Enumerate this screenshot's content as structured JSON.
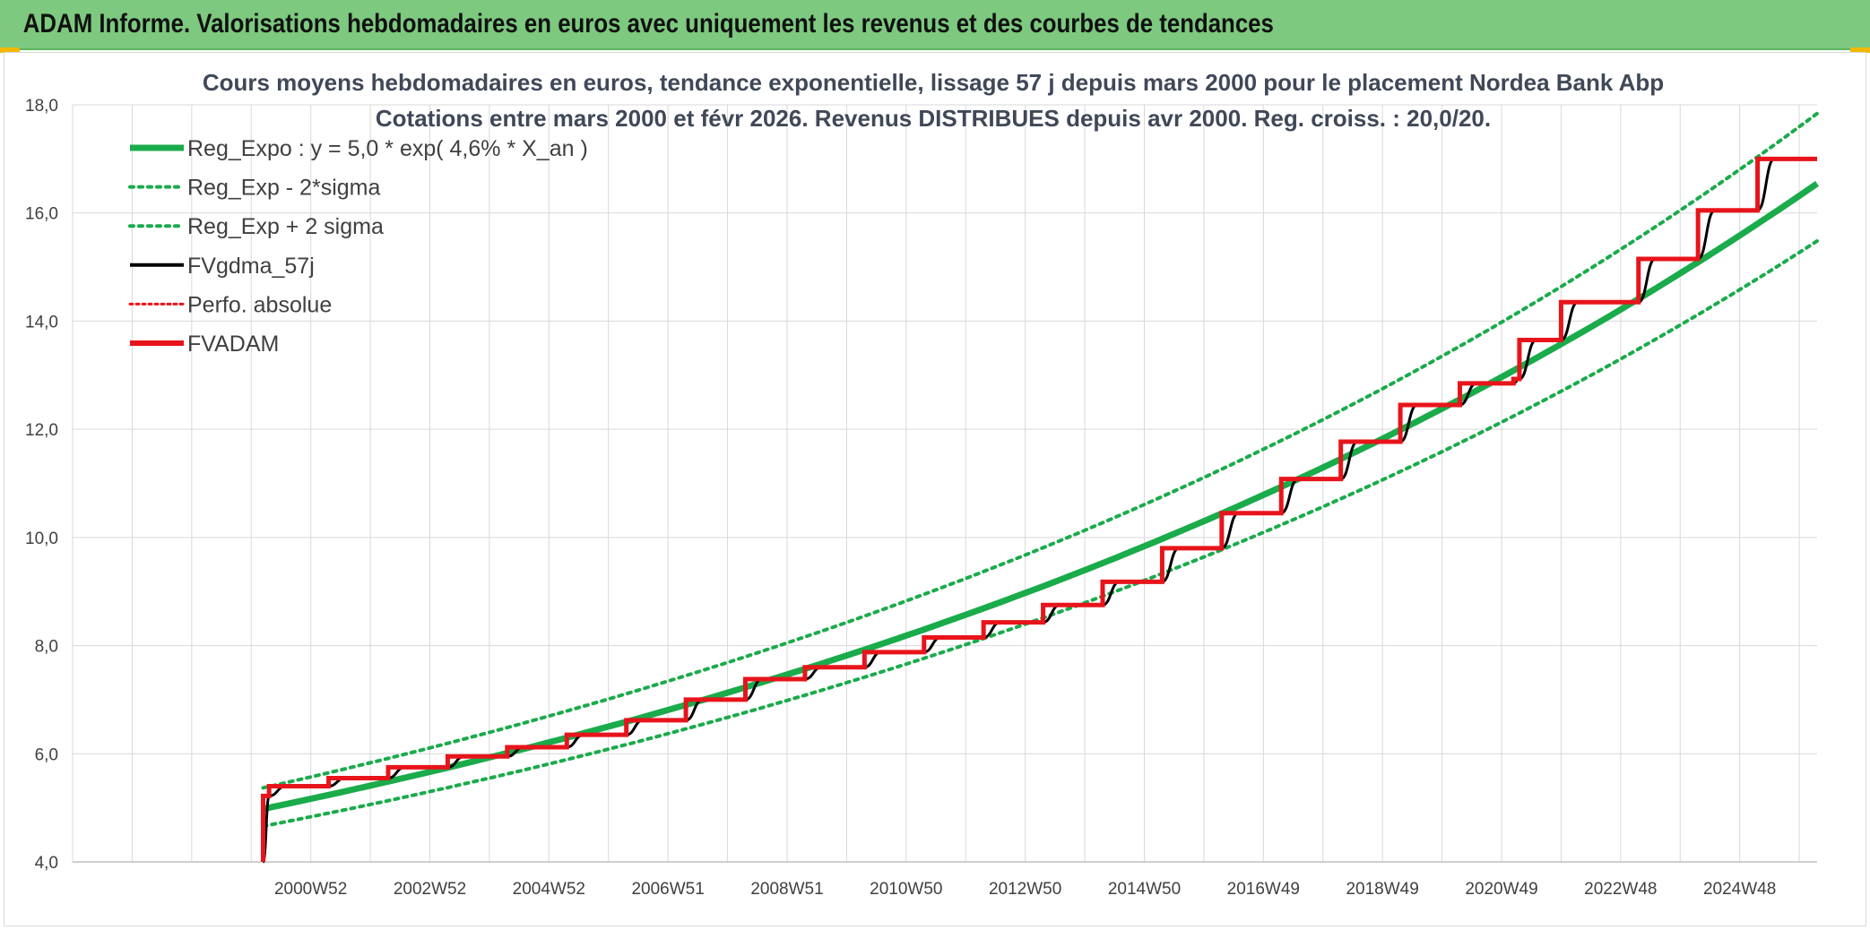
{
  "banner": {
    "text": "ADAM Informe. Valorisations hebdomadaires en euros avec uniquement les revenus et des courbes de tendances"
  },
  "colors": {
    "banner_bg": "#7dc97f",
    "trend_green": "#1aab4b",
    "fv_black": "#000000",
    "adam_red": "#e8141b",
    "grid": "#d9d9d9"
  },
  "chart_data": {
    "type": "line",
    "title": "Cours moyens hebdomadaires en euros, tendance exponentielle, lissage 57 j depuis mars 2000 pour le placement Nordea Bank Abp",
    "subtitle": "Cotations entre mars 2000 et févr 2026. Revenus DISTRIBUES depuis avr 2000. Reg. croiss. : 20,0/20.",
    "xlabel": "",
    "ylabel": "",
    "x_range": [
      1997.0,
      2026.3
    ],
    "ylim": [
      4,
      18
    ],
    "y_ticks": [
      "4,0",
      "6,0",
      "8,0",
      "10,0",
      "12,0",
      "14,0",
      "16,0",
      "18,0"
    ],
    "y_tick_values": [
      4,
      6,
      8,
      10,
      12,
      14,
      16,
      18
    ],
    "x_ticks": [
      "2000W52",
      "2002W52",
      "2004W52",
      "2006W51",
      "2008W51",
      "2010W50",
      "2012W50",
      "2014W50",
      "2016W49",
      "2018W49",
      "2020W49",
      "2022W48",
      "2024W48"
    ],
    "x_tick_values": [
      2001,
      2003,
      2005,
      2007,
      2009,
      2011,
      2013,
      2015,
      2017,
      2019,
      2021,
      2023,
      2025
    ],
    "gridlines": true,
    "legend_position": "top-left",
    "series": [
      {
        "name": "Reg_Expo : y = 5,0 * exp( 4,6% *  X_an )",
        "kind": "exp",
        "base": 4.98,
        "rate": 0.046,
        "x0": 2000.2,
        "x_start": 2000.2,
        "x_end": 2026.3,
        "color": "#1aab4b",
        "style": "solid"
      },
      {
        "name": "Reg_Exp - 2*sigma",
        "kind": "exp",
        "base": 4.66,
        "rate": 0.046,
        "x0": 2000.2,
        "x_start": 2000.2,
        "x_end": 2026.3,
        "color": "#1aab4b",
        "style": "dotted"
      },
      {
        "name": "Reg_Exp + 2 sigma",
        "kind": "exp",
        "base": 5.37,
        "rate": 0.046,
        "x0": 2000.2,
        "x_start": 2000.2,
        "x_end": 2026.3,
        "color": "#1aab4b",
        "style": "dotted"
      },
      {
        "name": "FVgdma_57j",
        "kind": "smooth_steps",
        "color": "#000000",
        "style": "solid"
      },
      {
        "name": "Perfo. absolue",
        "kind": "none",
        "color": "#e8141b",
        "style": "dotted"
      },
      {
        "name": "FVADAM",
        "kind": "steps",
        "color": "#e8141b",
        "style": "solid"
      }
    ],
    "step_start": {
      "x": 2000.2,
      "y": 4.0
    },
    "steps": [
      {
        "x": 2000.2,
        "y": 5.22
      },
      {
        "x": 2000.3,
        "y": 5.4
      },
      {
        "x": 2001.3,
        "y": 5.55
      },
      {
        "x": 2002.3,
        "y": 5.75
      },
      {
        "x": 2003.3,
        "y": 5.95
      },
      {
        "x": 2004.3,
        "y": 6.12
      },
      {
        "x": 2005.3,
        "y": 6.35
      },
      {
        "x": 2006.3,
        "y": 6.62
      },
      {
        "x": 2007.3,
        "y": 7.0
      },
      {
        "x": 2008.3,
        "y": 7.38
      },
      {
        "x": 2009.3,
        "y": 7.6
      },
      {
        "x": 2010.3,
        "y": 7.88
      },
      {
        "x": 2011.3,
        "y": 8.15
      },
      {
        "x": 2012.3,
        "y": 8.43
      },
      {
        "x": 2013.3,
        "y": 8.75
      },
      {
        "x": 2014.3,
        "y": 9.18
      },
      {
        "x": 2015.3,
        "y": 9.8
      },
      {
        "x": 2016.3,
        "y": 10.45
      },
      {
        "x": 2017.3,
        "y": 11.08
      },
      {
        "x": 2018.3,
        "y": 11.77
      },
      {
        "x": 2019.3,
        "y": 12.45
      },
      {
        "x": 2020.3,
        "y": 12.85
      },
      {
        "x": 2021.2,
        "y": 12.93
      },
      {
        "x": 2021.3,
        "y": 13.65
      },
      {
        "x": 2022.0,
        "y": 14.35
      },
      {
        "x": 2023.3,
        "y": 15.15
      },
      {
        "x": 2024.3,
        "y": 16.05
      },
      {
        "x": 2025.3,
        "y": 17.0
      }
    ],
    "step_end_x": 2026.3
  }
}
